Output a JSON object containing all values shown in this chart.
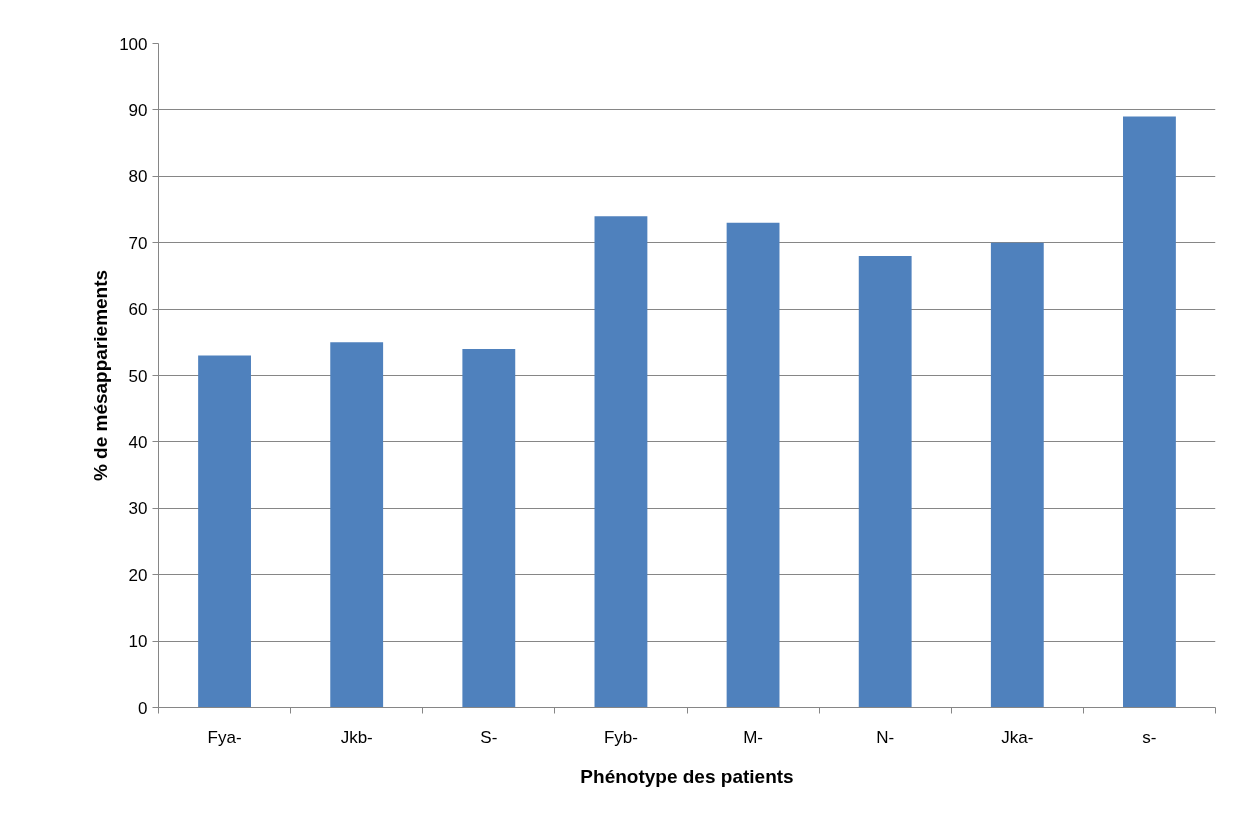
{
  "chart_data": {
    "type": "bar",
    "xlabel": "Phénotype des patients",
    "ylabel": "% de mésappariements",
    "categories": [
      "Fya-",
      "Jkb-",
      "S-",
      "Fyb-",
      "M-",
      "N-",
      "Jka-",
      "s-"
    ],
    "values": [
      53,
      55,
      54,
      74,
      73,
      68,
      70,
      89
    ],
    "color": "#4f81bd",
    "ylim": [
      0,
      100
    ],
    "yticks": [
      0,
      10,
      20,
      30,
      40,
      50,
      60,
      70,
      80,
      90,
      100
    ],
    "grid": "y"
  }
}
